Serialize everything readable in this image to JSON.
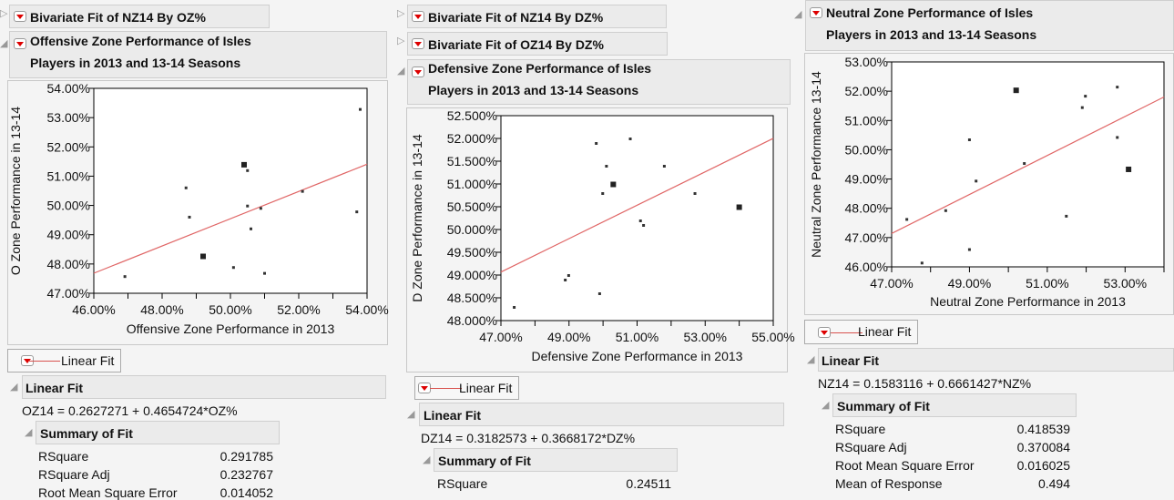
{
  "panels": [
    {
      "collapsed": [
        "Bivariate Fit of NZ14 By OZ%"
      ],
      "title_line1": "Offensive Zone Performance of Isles",
      "title_line2": "Players in 2013 and 13-14 Seasons",
      "legend_label": "Linear Fit",
      "fit_header": "Linear Fit",
      "equation": "OZ14 = 0.2627271 + 0.4654724*OZ%",
      "summary_header": "Summary of Fit",
      "summary": [
        {
          "label": "RSquare",
          "value": "0.291785"
        },
        {
          "label": "RSquare Adj",
          "value": "0.232767"
        },
        {
          "label": "Root Mean Square Error",
          "value": "0.014052"
        }
      ]
    },
    {
      "collapsed": [
        "Bivariate Fit of NZ14 By DZ%",
        "Bivariate Fit of OZ14 By DZ%"
      ],
      "title_line1": "Defensive Zone Performance of Isles",
      "title_line2": "Players in 2013 and 13-14 Seasons",
      "legend_label": "Linear Fit",
      "fit_header": "Linear Fit",
      "equation": "DZ14 = 0.3182573 + 0.3668172*DZ%",
      "summary_header": "Summary of Fit",
      "summary": [
        {
          "label": "RSquare",
          "value": "0.24511"
        }
      ]
    },
    {
      "collapsed": [],
      "title_line1": "Neutral Zone Performance of Isles",
      "title_line2": "Players in 2013 and 13-14 Seasons",
      "legend_label": "Linear Fit",
      "fit_header": "Linear Fit",
      "equation": "NZ14 = 0.1583116 + 0.6661427*NZ%",
      "summary_header": "Summary of Fit",
      "summary": [
        {
          "label": "RSquare",
          "value": "0.418539"
        },
        {
          "label": "RSquare Adj",
          "value": "0.370084"
        },
        {
          "label": "Root Mean Square Error",
          "value": "0.016025"
        },
        {
          "label": "Mean of Response",
          "value": "0.494"
        }
      ]
    }
  ],
  "chart_data": [
    {
      "type": "scatter",
      "xlabel": "Offensive Zone Performance in 2013",
      "ylabel": "O Zone Performance in 13-14",
      "xlim": [
        46,
        54
      ],
      "ylim": [
        47,
        54
      ],
      "xticks": [
        46,
        48,
        50,
        52,
        54
      ],
      "xminor": [
        47,
        49,
        51,
        53
      ],
      "xdec": 2,
      "yticks": [
        47,
        48,
        49,
        50,
        51,
        52,
        53,
        54
      ],
      "ydec": 2,
      "fit": {
        "intercept": 0.2627271,
        "slope": 0.4654724,
        "color": "#e06666"
      },
      "points": [
        [
          46.91,
          47.57,
          1
        ],
        [
          48.7,
          50.6,
          1
        ],
        [
          48.8,
          49.6,
          1
        ],
        [
          49.2,
          48.26,
          2
        ],
        [
          50.09,
          47.88,
          1
        ],
        [
          50.4,
          51.39,
          2
        ],
        [
          50.5,
          51.19,
          1
        ],
        [
          50.5,
          49.98,
          1
        ],
        [
          50.6,
          49.2,
          1
        ],
        [
          50.89,
          49.9,
          1
        ],
        [
          51.0,
          47.68,
          1
        ],
        [
          52.11,
          50.48,
          1
        ],
        [
          53.7,
          49.78,
          1
        ],
        [
          53.8,
          53.28,
          1
        ]
      ]
    },
    {
      "type": "scatter",
      "xlabel": "Defensive Zone Performance in 2013",
      "ylabel": "D Zone Performance in 13-14",
      "xlim": [
        47,
        55
      ],
      "ylim": [
        48,
        52.5
      ],
      "xticks": [
        47,
        49,
        51,
        53,
        55
      ],
      "xminor": [
        48,
        50,
        52,
        54
      ],
      "xdec": 2,
      "yticks": [
        48,
        48.5,
        49,
        49.5,
        50,
        50.5,
        51,
        51.5,
        52,
        52.5
      ],
      "ydec": 3,
      "fit": {
        "intercept": 0.3182573,
        "slope": 0.3668172,
        "color": "#e06666"
      },
      "points": [
        [
          47.39,
          48.29,
          1
        ],
        [
          48.89,
          48.89,
          1
        ],
        [
          48.99,
          48.99,
          1
        ],
        [
          49.8,
          51.89,
          1
        ],
        [
          49.9,
          48.59,
          1
        ],
        [
          49.99,
          50.79,
          1
        ],
        [
          50.1,
          51.39,
          1
        ],
        [
          50.3,
          50.99,
          2
        ],
        [
          50.8,
          51.99,
          1
        ],
        [
          51.1,
          50.19,
          1
        ],
        [
          51.19,
          50.09,
          1
        ],
        [
          51.8,
          51.39,
          1
        ],
        [
          52.7,
          50.79,
          1
        ],
        [
          54.0,
          50.49,
          2
        ]
      ]
    },
    {
      "type": "scatter",
      "xlabel": "Neutral Zone Performance in 2013",
      "ylabel": "Neutral Zone Performance 13-14",
      "xlim": [
        47,
        54
      ],
      "ylim": [
        46,
        53
      ],
      "xticks": [
        47,
        49,
        51,
        53
      ],
      "xminor": [
        48,
        50,
        52,
        54
      ],
      "xdec": 2,
      "yticks": [
        46,
        47,
        48,
        49,
        50,
        51,
        52,
        53
      ],
      "ydec": 2,
      "fit": {
        "intercept": 0.1583116,
        "slope": 0.6661427,
        "color": "#e06666"
      },
      "points": [
        [
          47.39,
          47.62,
          1
        ],
        [
          47.78,
          46.13,
          1
        ],
        [
          48.39,
          47.92,
          1
        ],
        [
          49.0,
          50.34,
          1
        ],
        [
          49.0,
          46.59,
          1
        ],
        [
          49.17,
          48.93,
          1
        ],
        [
          50.2,
          52.03,
          2
        ],
        [
          50.41,
          49.53,
          1
        ],
        [
          51.49,
          47.73,
          1
        ],
        [
          51.9,
          51.44,
          1
        ],
        [
          51.98,
          51.83,
          1
        ],
        [
          52.8,
          52.14,
          1
        ],
        [
          52.8,
          50.42,
          1
        ],
        [
          53.09,
          49.33,
          2
        ]
      ]
    }
  ]
}
